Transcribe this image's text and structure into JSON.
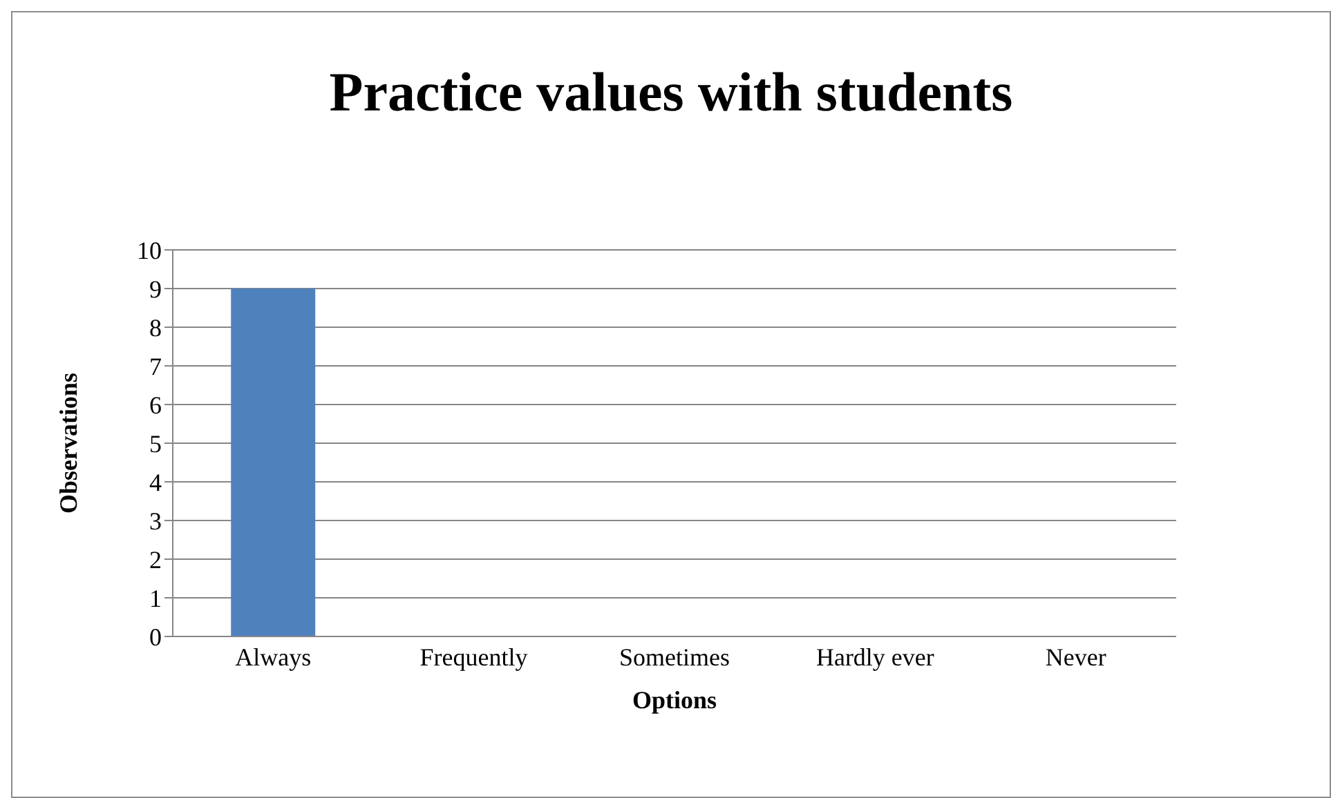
{
  "chart_data": {
    "type": "bar",
    "title": "Practice values with students",
    "xlabel": "Options",
    "ylabel": "Observations",
    "categories": [
      "Always",
      "Frequently",
      "Sometimes",
      "Hardly ever",
      "Never"
    ],
    "values": [
      9,
      0,
      0,
      0,
      0
    ],
    "color": "#4f81bd",
    "ylim": [
      0,
      10
    ],
    "yticks": [
      0,
      1,
      2,
      3,
      4,
      5,
      6,
      7,
      8,
      9,
      10
    ],
    "grid": "y",
    "legend": false
  }
}
